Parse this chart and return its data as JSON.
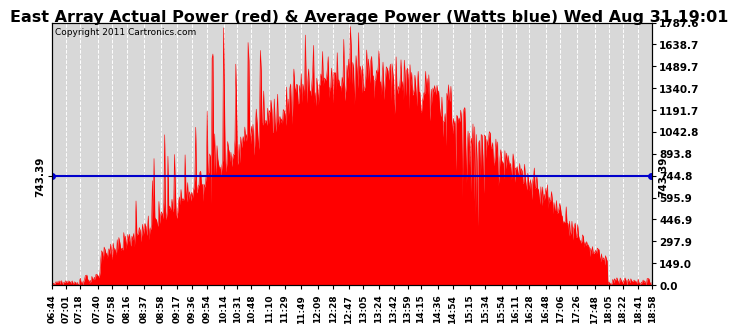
{
  "title": "East Array Actual Power (red) & Average Power (Watts blue) Wed Aug 31 19:01",
  "copyright": "Copyright 2011 Cartronics.com",
  "avg_power": 743.39,
  "ymax": 1787.6,
  "yticks": [
    0.0,
    149.0,
    297.9,
    446.9,
    595.9,
    744.8,
    893.8,
    1042.8,
    1191.7,
    1340.7,
    1489.7,
    1638.7,
    1787.6
  ],
  "bg_color": "#ffffff",
  "plot_bg_color": "#d8d8d8",
  "grid_color": "#ffffff",
  "red_color": "#ff0000",
  "blue_color": "#0000cc",
  "title_fontsize": 11.5,
  "tick_fontsize": 7.5,
  "xtick_labels": [
    "06:44",
    "07:01",
    "07:18",
    "07:40",
    "07:58",
    "08:16",
    "08:37",
    "08:58",
    "09:17",
    "09:36",
    "09:54",
    "10:14",
    "10:31",
    "10:48",
    "11:10",
    "11:29",
    "11:49",
    "12:09",
    "12:28",
    "12:47",
    "13:05",
    "13:24",
    "13:42",
    "13:59",
    "14:15",
    "14:36",
    "14:54",
    "15:15",
    "15:34",
    "15:54",
    "16:11",
    "16:28",
    "16:48",
    "17:06",
    "17:26",
    "17:48",
    "18:05",
    "18:22",
    "18:41",
    "18:58"
  ]
}
